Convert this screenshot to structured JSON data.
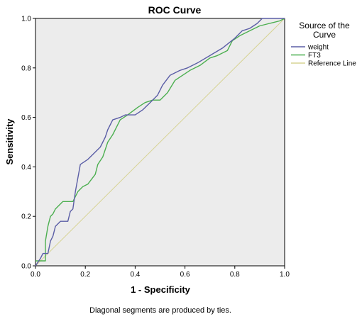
{
  "chart_data": {
    "type": "line",
    "title": "ROC Curve",
    "xlabel": "1 - Specificity",
    "ylabel": "Sensitivity",
    "xlim": [
      0,
      1
    ],
    "ylim": [
      0,
      1
    ],
    "xticks": [
      "0.0",
      "0.2",
      "0.4",
      "0.6",
      "0.8",
      "1.0"
    ],
    "yticks": [
      "0.0",
      "0.2",
      "0.4",
      "0.6",
      "0.8",
      "1.0"
    ],
    "grid": false,
    "background": "#ececec",
    "legend": {
      "title_line1": "Source of the",
      "title_line2": "Curve",
      "placement": "right"
    },
    "footnote": "Diagonal segments are produced by ties.",
    "series": [
      {
        "name": "weight",
        "color": "#5b5ea6",
        "x": [
          0.0,
          0.02,
          0.03,
          0.05,
          0.06,
          0.07,
          0.08,
          0.1,
          0.13,
          0.14,
          0.15,
          0.16,
          0.18,
          0.21,
          0.24,
          0.26,
          0.28,
          0.29,
          0.31,
          0.34,
          0.36,
          0.4,
          0.43,
          0.46,
          0.49,
          0.51,
          0.54,
          0.58,
          0.61,
          0.65,
          0.7,
          0.75,
          0.8,
          0.83,
          0.86,
          0.89,
          0.91,
          0.93,
          1.0
        ],
        "y": [
          0.0,
          0.03,
          0.05,
          0.05,
          0.1,
          0.12,
          0.16,
          0.18,
          0.18,
          0.22,
          0.23,
          0.3,
          0.41,
          0.43,
          0.46,
          0.48,
          0.52,
          0.55,
          0.59,
          0.6,
          0.61,
          0.61,
          0.63,
          0.66,
          0.69,
          0.73,
          0.77,
          0.79,
          0.8,
          0.82,
          0.85,
          0.88,
          0.92,
          0.95,
          0.96,
          0.98,
          1.0,
          1.0,
          1.0
        ]
      },
      {
        "name": "FT3",
        "color": "#4caf50",
        "x": [
          0.0,
          0.04,
          0.04,
          0.05,
          0.06,
          0.07,
          0.08,
          0.1,
          0.11,
          0.13,
          0.15,
          0.17,
          0.19,
          0.21,
          0.24,
          0.25,
          0.27,
          0.29,
          0.31,
          0.33,
          0.34,
          0.37,
          0.41,
          0.44,
          0.47,
          0.5,
          0.53,
          0.56,
          0.59,
          0.62,
          0.66,
          0.7,
          0.73,
          0.77,
          0.79,
          0.82,
          0.86,
          0.9,
          0.94,
          0.98,
          1.0
        ],
        "y": [
          0.02,
          0.02,
          0.1,
          0.16,
          0.2,
          0.21,
          0.23,
          0.25,
          0.26,
          0.26,
          0.26,
          0.3,
          0.32,
          0.33,
          0.37,
          0.41,
          0.44,
          0.5,
          0.53,
          0.57,
          0.59,
          0.61,
          0.64,
          0.66,
          0.67,
          0.67,
          0.7,
          0.75,
          0.77,
          0.79,
          0.81,
          0.84,
          0.85,
          0.87,
          0.91,
          0.93,
          0.95,
          0.97,
          0.98,
          0.99,
          1.0
        ]
      },
      {
        "name": "Reference Line",
        "color": "#d7d394",
        "x": [
          0,
          1
        ],
        "y": [
          0,
          1
        ]
      }
    ]
  }
}
